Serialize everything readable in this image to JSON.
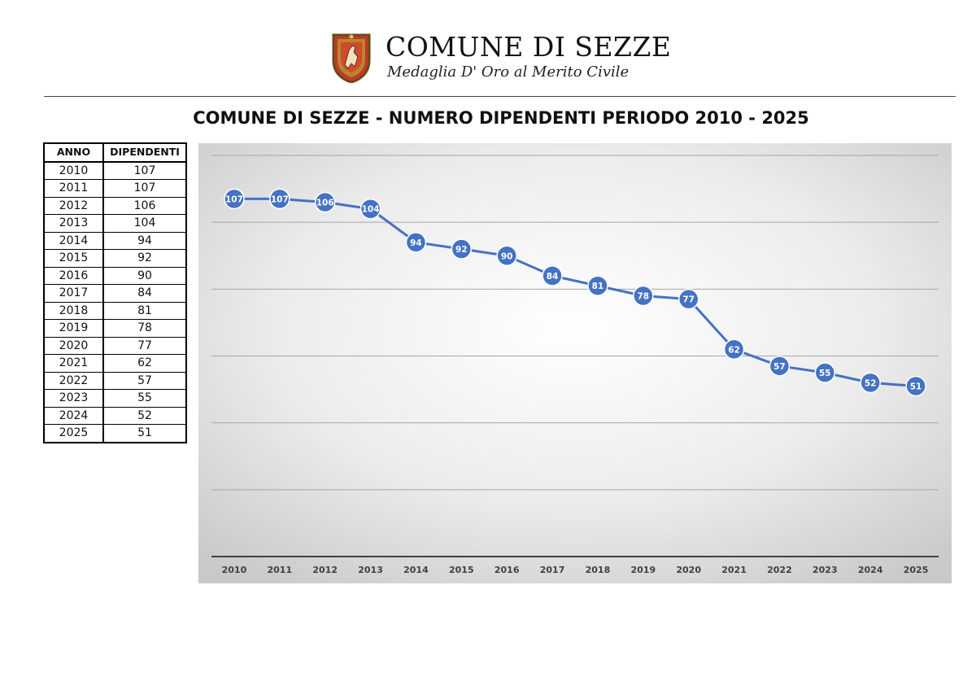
{
  "header": {
    "name": "COMUNE DI SEZZE",
    "motto": "Medaglia D' Oro al Merito Civile"
  },
  "colors": {
    "line": "#4472C4",
    "label_text": "#ffffff",
    "grid": "#a6a6a6",
    "axis": "#404040"
  },
  "table": {
    "headers": [
      "ANNO",
      "DIPENDENTI"
    ],
    "rows": [
      [
        "2010",
        "107"
      ],
      [
        "2011",
        "107"
      ],
      [
        "2012",
        "106"
      ],
      [
        "2013",
        "104"
      ],
      [
        "2014",
        "94"
      ],
      [
        "2015",
        "92"
      ],
      [
        "2016",
        "90"
      ],
      [
        "2017",
        "84"
      ],
      [
        "2018",
        "81"
      ],
      [
        "2019",
        "78"
      ],
      [
        "2020",
        "77"
      ],
      [
        "2021",
        "62"
      ],
      [
        "2022",
        "57"
      ],
      [
        "2023",
        "55"
      ],
      [
        "2024",
        "52"
      ],
      [
        "2025",
        "51"
      ]
    ]
  },
  "chart_data": {
    "type": "line",
    "title": "COMUNE DI SEZZE - NUMERO DIPENDENTI PERIODO 2010 - 2025",
    "xlabel": "",
    "ylabel": "",
    "categories": [
      "2010",
      "2011",
      "2012",
      "2013",
      "2014",
      "2015",
      "2016",
      "2017",
      "2018",
      "2019",
      "2020",
      "2021",
      "2022",
      "2023",
      "2024",
      "2025"
    ],
    "series": [
      {
        "values": [
          107,
          107,
          106,
          104,
          94,
          92,
          90,
          84,
          81,
          78,
          77,
          62,
          57,
          55,
          52,
          51
        ]
      }
    ],
    "ylim": [
      0,
      120
    ],
    "y_gridlines": [
      20,
      40,
      60,
      80,
      100,
      120
    ],
    "y_tick_labels_shown": false,
    "grid": true,
    "legend": "none",
    "data_labels": true
  }
}
